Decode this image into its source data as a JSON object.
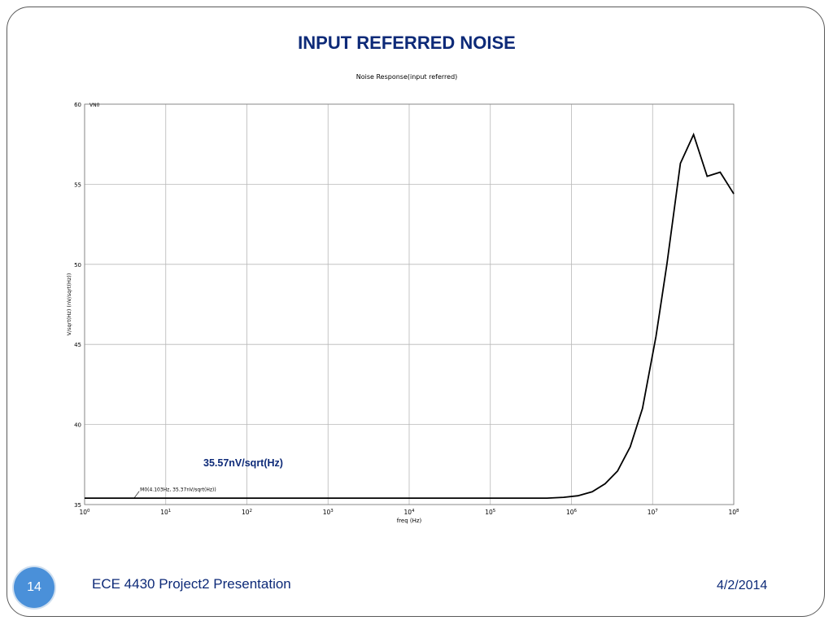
{
  "slide": {
    "title": "INPUT REFERRED NOISE",
    "annotation": "35.57nV/sqrt(Hz)",
    "page_number": "14",
    "footer_text": "ECE 4430 Project2 Presentation",
    "date": "4/2/2014"
  },
  "chart_data": {
    "type": "line",
    "title": "Noise Response(input referred)",
    "xlabel": "freq (Hz)",
    "ylabel": "V/sqrt(Hz) (nV/sqrt(Hz))",
    "x_scale": "log",
    "xlim": [
      1,
      100000000
    ],
    "ylim": [
      35,
      60
    ],
    "x_ticks": [
      {
        "value": 1,
        "base": "10",
        "exp": "0"
      },
      {
        "value": 10,
        "base": "10",
        "exp": "1"
      },
      {
        "value": 100,
        "base": "10",
        "exp": "2"
      },
      {
        "value": 1000,
        "base": "10",
        "exp": "3"
      },
      {
        "value": 10000,
        "base": "10",
        "exp": "4"
      },
      {
        "value": 100000,
        "base": "10",
        "exp": "5"
      },
      {
        "value": 1000000,
        "base": "10",
        "exp": "6"
      },
      {
        "value": 10000000,
        "base": "10",
        "exp": "7"
      },
      {
        "value": 100000000,
        "base": "10",
        "exp": "8"
      }
    ],
    "y_ticks": [
      35,
      40,
      45,
      50,
      55,
      60
    ],
    "top_label": "VN0",
    "grid": true,
    "series": [
      {
        "name": "VN0",
        "color": "#000000",
        "x": [
          1,
          10,
          100,
          1000,
          10000,
          100000,
          500000,
          800000,
          1200000,
          1800000,
          2600000,
          3700000,
          5300000,
          7500000,
          11000000,
          15000000,
          22000000,
          32000000,
          47000000,
          68000000,
          100000000
        ],
        "y": [
          35.4,
          35.4,
          35.4,
          35.4,
          35.4,
          35.4,
          35.4,
          35.45,
          35.55,
          35.8,
          36.3,
          37.1,
          38.6,
          41.0,
          45.5,
          50.0,
          56.3,
          58.1,
          55.5,
          55.75,
          54.4
        ]
      }
    ],
    "marker": {
      "label": "M0(4.103Hz, 35.37nV/sqrt(Hz))",
      "x": 4.103,
      "y": 35.37
    }
  }
}
